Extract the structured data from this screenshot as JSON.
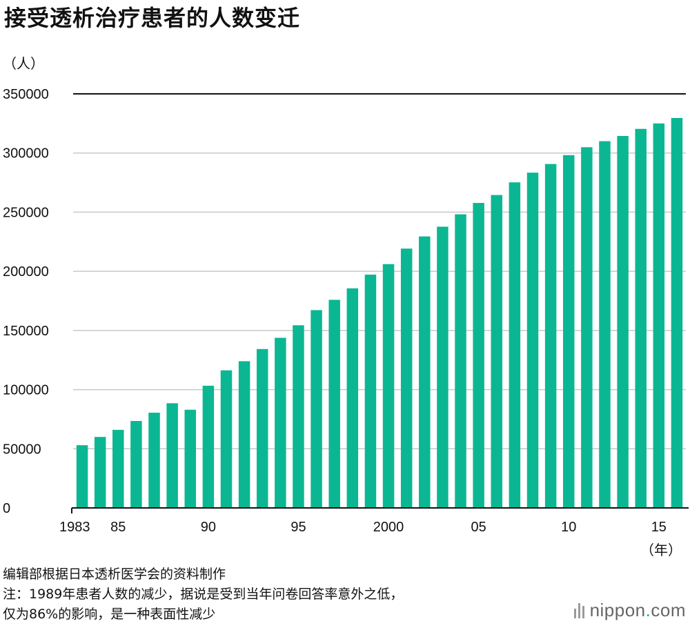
{
  "title": "接受透析治疗患者的人数变迁",
  "y_unit": "（人）",
  "x_unit": "（年）",
  "notes": [
    "编辑部根据日本透析医学会的资料制作",
    "注：1989年患者人数的减少，据说是受到当年问卷回答率意外之低，",
    "仅为86%的影响，是一种表面性减少"
  ],
  "brand": {
    "name": "nippon",
    "dot": ".",
    "suffix": "com",
    "icon": "sound-bars-icon"
  },
  "colors": {
    "bar": "#0bb793",
    "grid": "#c8c8c8",
    "top_line": "#111111",
    "axis": "#111111"
  },
  "chart_data": {
    "type": "bar",
    "title": "接受透析治疗患者的人数变迁",
    "ylabel": "（人）",
    "xlabel": "（年）",
    "ylim": [
      0,
      350000
    ],
    "y_ticks": [
      0,
      50000,
      100000,
      150000,
      200000,
      250000,
      300000,
      350000
    ],
    "y_tick_labels": [
      "0",
      "50000",
      "100000",
      "150000",
      "200000",
      "250000",
      "300000",
      "350000"
    ],
    "grid": true,
    "categories": [
      1983,
      1984,
      1985,
      1986,
      1987,
      1988,
      1989,
      1990,
      1991,
      1992,
      1993,
      1994,
      1995,
      1996,
      1997,
      1998,
      1999,
      2000,
      2001,
      2002,
      2003,
      2004,
      2005,
      2006,
      2007,
      2008,
      2009,
      2010,
      2011,
      2012,
      2013,
      2014,
      2015,
      2016
    ],
    "x_tick_labels": [
      {
        "category": 1983,
        "label": "1983"
      },
      {
        "category": 1985,
        "label": "85"
      },
      {
        "category": 1990,
        "label": "90"
      },
      {
        "category": 1995,
        "label": "95"
      },
      {
        "category": 2000,
        "label": "2000"
      },
      {
        "category": 2005,
        "label": "05"
      },
      {
        "category": 2010,
        "label": "10"
      },
      {
        "category": 2015,
        "label": "15"
      }
    ],
    "values": [
      53000,
      60000,
      66000,
      73500,
      80500,
      88500,
      83000,
      103300,
      116300,
      124000,
      134300,
      143800,
      154400,
      167200,
      175900,
      185600,
      197200,
      206100,
      219200,
      229500,
      237700,
      248200,
      257800,
      264500,
      275200,
      283400,
      290700,
      298200,
      304900,
      310000,
      314400,
      320400,
      325000,
      329600
    ]
  }
}
